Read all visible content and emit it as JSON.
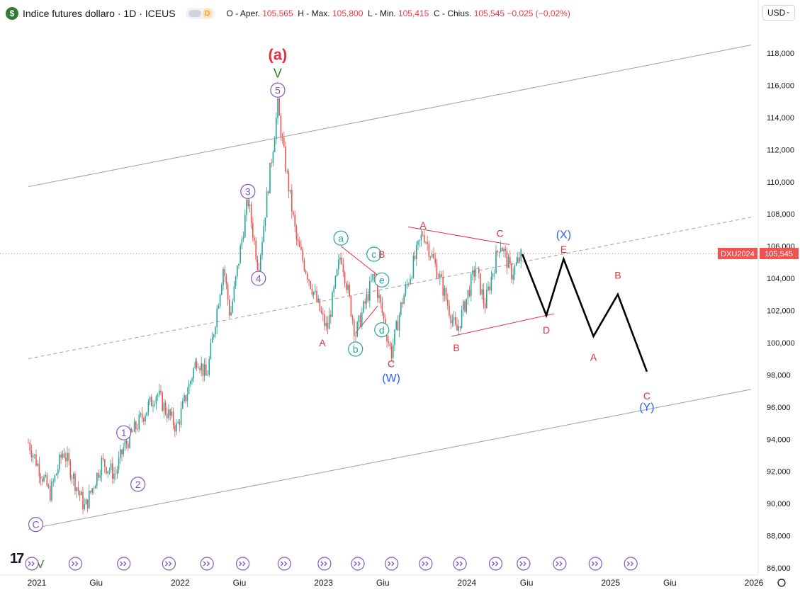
{
  "header": {
    "title": "Indice futures dollaro · 1D · ICEUS",
    "logo_letter": "$",
    "badge_letter": "D",
    "ohlc": {
      "o_label": "O - Aper.",
      "o": "105,565",
      "h_label": "H - Max.",
      "h": "105,800",
      "l_label": "L - Min.",
      "l": "105,415",
      "c_label": "C - Chius.",
      "c": "105,545",
      "change": "−0,025 (−0,02%)"
    }
  },
  "currency": "USD",
  "symbol_tag": "DXU2024",
  "last_price": "105,545",
  "colors": {
    "up": "#26a69a",
    "down": "#ef5350",
    "red_label": "#e03242",
    "blue_label": "#2962ff",
    "purple": "#7e57c2",
    "teal": "#26a69a"
  },
  "chart_data": {
    "type": "line",
    "y_axis": {
      "min": 86,
      "max": 118,
      "ticks": [
        "118,000",
        "116,000",
        "114,000",
        "112,000",
        "110,000",
        "108,000",
        "106,000",
        "104,000",
        "102,000",
        "100,000",
        "98,000",
        "96,000",
        "94,000",
        "92,000",
        "90,000",
        "88,000",
        "86,000"
      ]
    },
    "x_axis": {
      "ticks": [
        "2021",
        "Giu",
        "2022",
        "Giu",
        "2023",
        "Giu",
        "2024",
        "Giu",
        "2025",
        "Giu",
        "2026"
      ]
    },
    "price_path": [
      [
        "2021-01-01",
        93.8
      ],
      [
        "2021-02-25",
        90.6
      ],
      [
        "2021-03-31",
        93.3
      ],
      [
        "2021-05-25",
        89.7
      ],
      [
        "2021-07-07",
        92.6
      ],
      [
        "2021-08-10",
        91.8
      ],
      [
        "2021-09-01",
        93.5
      ],
      [
        "2021-11-24",
        96.9
      ],
      [
        "2021-12-15",
        95.9
      ],
      [
        "2022-01-14",
        94.7
      ],
      [
        "2022-03-07",
        99.1
      ],
      [
        "2022-03-31",
        97.8
      ],
      [
        "2022-05-13",
        104.8
      ],
      [
        "2022-05-30",
        101.6
      ],
      [
        "2022-07-14",
        108.9
      ],
      [
        "2022-08-10",
        104.6
      ],
      [
        "2022-09-28",
        114.7
      ],
      [
        "2022-10-15",
        111.5
      ],
      [
        "2022-11-15",
        106.3
      ],
      [
        "2023-01-20",
        101.5
      ],
      [
        "2023-02-01",
        100.8
      ],
      [
        "2023-03-08",
        105.6
      ],
      [
        "2023-04-14",
        100.5
      ],
      [
        "2023-05-31",
        104.2
      ],
      [
        "2023-07-14",
        99.3
      ],
      [
        "2023-08-10",
        102.5
      ],
      [
        "2023-10-03",
        106.9
      ],
      [
        "2023-11-15",
        104.0
      ],
      [
        "2023-12-27",
        100.6
      ],
      [
        "2024-02-14",
        104.7
      ],
      [
        "2024-03-08",
        102.3
      ],
      [
        "2024-04-16",
        106.3
      ],
      [
        "2024-05-15",
        104.3
      ],
      [
        "2024-06-12",
        105.5
      ]
    ],
    "projection": [
      [
        "2024-06-12",
        105.5
      ],
      [
        "2024-08-12",
        101.7
      ],
      [
        "2024-09-25",
        105.2
      ],
      [
        "2024-12-10",
        100.4
      ],
      [
        "2025-02-10",
        103.0
      ],
      [
        "2025-04-25",
        98.2
      ]
    ],
    "channel_lines": [
      {
        "style": "solid",
        "from": [
          "2021-01-01",
          109.7
        ],
        "to": [
          "2026-01-15",
          118.5
        ]
      },
      {
        "style": "solid",
        "from": [
          "2021-01-01",
          88.4
        ],
        "to": [
          "2026-01-15",
          97.1
        ]
      },
      {
        "style": "dashed",
        "from": [
          "2021-01-01",
          99.0
        ],
        "to": [
          "2026-01-15",
          107.8
        ]
      }
    ],
    "trend_lines": [
      {
        "color": "red",
        "from": [
          "2023-03-08",
          106.0
        ],
        "to": [
          "2023-06-20",
          104.0
        ]
      },
      {
        "color": "red",
        "from": [
          "2023-04-14",
          100.6
        ],
        "to": [
          "2023-06-10",
          102.3
        ]
      },
      {
        "color": "red",
        "from": [
          "2023-08-26",
          107.2
        ],
        "to": [
          "2024-05-10",
          106.1
        ]
      },
      {
        "color": "red",
        "from": [
          "2023-12-15",
          100.4
        ],
        "to": [
          "2024-09-01",
          101.8
        ]
      }
    ],
    "wave_labels": [
      {
        "text": "(a)",
        "style": "bold-red",
        "x": "2022-09-28",
        "y": 117.8
      },
      {
        "text": "V",
        "style": "green",
        "x": "2022-09-28",
        "y": 116.7
      },
      {
        "text": "5",
        "style": "circle-purple",
        "x": "2022-09-28",
        "y": 115.7
      },
      {
        "text": "3",
        "style": "circle-purple",
        "x": "2022-07-14",
        "y": 109.4
      },
      {
        "text": "4",
        "style": "circle-purple",
        "x": "2022-08-10",
        "y": 104.0
      },
      {
        "text": "1",
        "style": "circle-purple",
        "x": "2021-09-01",
        "y": 94.4
      },
      {
        "text": "2",
        "style": "circle-purple",
        "x": "2021-10-07",
        "y": 91.2
      },
      {
        "text": "C",
        "style": "circle-purple",
        "x": "2021-01-20",
        "y": 88.7
      },
      {
        "text": "a",
        "style": "circle-teal",
        "x": "2023-03-08",
        "y": 106.5
      },
      {
        "text": "b",
        "style": "circle-teal",
        "x": "2023-04-14",
        "y": 99.6
      },
      {
        "text": "c",
        "style": "circle-teal",
        "x": "2023-05-31",
        "y": 105.5
      },
      {
        "text": "d",
        "style": "circle-teal",
        "x": "2023-06-20",
        "y": 100.8
      },
      {
        "text": "e",
        "style": "circle-teal",
        "x": "2023-06-20",
        "y": 103.9
      },
      {
        "text": "A",
        "style": "red",
        "x": "2023-01-20",
        "y": 100.0
      },
      {
        "text": "B",
        "style": "red",
        "x": "2023-06-20",
        "y": 105.5
      },
      {
        "text": "C",
        "style": "red",
        "x": "2023-07-14",
        "y": 98.7
      },
      {
        "text": "(W)",
        "style": "blue",
        "x": "2023-07-14",
        "y": 97.8
      },
      {
        "text": "A",
        "style": "red",
        "x": "2023-10-03",
        "y": 107.3
      },
      {
        "text": "B",
        "style": "red",
        "x": "2023-12-27",
        "y": 99.7
      },
      {
        "text": "C",
        "style": "red",
        "x": "2024-04-16",
        "y": 106.8
      },
      {
        "text": "(X)",
        "style": "blue",
        "x": "2024-09-25",
        "y": 106.7
      },
      {
        "text": "E",
        "style": "red",
        "x": "2024-09-25",
        "y": 105.8
      },
      {
        "text": "D",
        "style": "red",
        "x": "2024-08-12",
        "y": 100.8
      },
      {
        "text": "A",
        "style": "red",
        "x": "2024-12-10",
        "y": 99.1
      },
      {
        "text": "B",
        "style": "red",
        "x": "2025-02-10",
        "y": 104.2
      },
      {
        "text": "C",
        "style": "red",
        "x": "2025-04-25",
        "y": 96.7
      },
      {
        "text": "(Y)",
        "style": "blue",
        "x": "2025-04-25",
        "y": 96.0
      }
    ],
    "bottom_markers": [
      "2021-01-10",
      "2021-05-01",
      "2021-09-01",
      "2021-12-25",
      "2022-04-01",
      "2022-07-01",
      "2022-10-15",
      "2023-01-25",
      "2023-04-20",
      "2023-07-15",
      "2023-10-10",
      "2024-01-05",
      "2024-04-05",
      "2024-06-15",
      "2024-09-15",
      "2024-12-15",
      "2025-03-15"
    ],
    "grid": false,
    "legend": "none"
  },
  "footer": {
    "logo_text": "17",
    "footer_v": "V"
  }
}
